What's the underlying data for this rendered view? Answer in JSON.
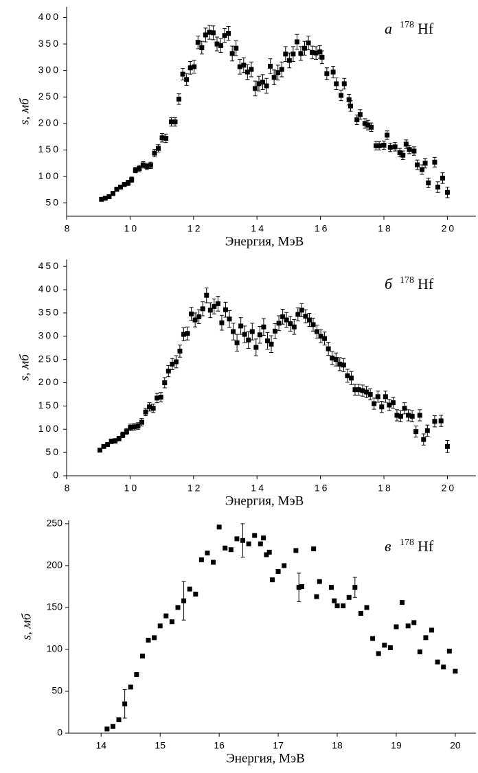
{
  "chart_data": [
    {
      "type": "scatter",
      "annotation_letter": "а",
      "annotation_mass": "178",
      "annotation_element": "Hf",
      "xlabel": "Энергия, МэВ",
      "ylabel": "s, мб",
      "color": "#000000",
      "xlim": [
        8,
        20.9
      ],
      "ylim": [
        25,
        420
      ],
      "xticks": [
        8,
        10,
        12,
        14,
        16,
        18,
        20
      ],
      "yticks": [
        50,
        100,
        150,
        200,
        250,
        300,
        350,
        400
      ],
      "x": [
        9.1,
        9.22,
        9.34,
        9.46,
        9.58,
        9.7,
        9.82,
        9.94,
        10.05,
        10.17,
        10.29,
        10.41,
        10.53,
        10.65,
        10.77,
        10.89,
        11.01,
        11.13,
        11.3,
        11.42,
        11.54,
        11.66,
        11.78,
        11.9,
        12.02,
        12.14,
        12.26,
        12.38,
        12.5,
        12.62,
        12.74,
        12.86,
        12.98,
        13.1,
        13.22,
        13.34,
        13.46,
        13.58,
        13.7,
        13.82,
        13.94,
        14.06,
        14.18,
        14.3,
        14.42,
        14.54,
        14.66,
        14.78,
        14.9,
        15.02,
        15.14,
        15.26,
        15.38,
        15.5,
        15.62,
        15.74,
        15.86,
        15.98,
        16.05,
        16.2,
        16.4,
        16.5,
        16.65,
        16.75,
        16.9,
        16.95,
        17.15,
        17.25,
        17.4,
        17.5,
        17.6,
        17.75,
        17.85,
        18.0,
        18.1,
        18.2,
        18.35,
        18.5,
        18.6,
        18.7,
        18.8,
        18.95,
        19.05,
        19.2,
        19.3,
        19.4,
        19.6,
        19.7,
        19.85,
        20.0
      ],
      "values": [
        57,
        59,
        62,
        68,
        76,
        80,
        85,
        88,
        94,
        112,
        115,
        122,
        119,
        121,
        144,
        153,
        173,
        172,
        203,
        203,
        246,
        293,
        283,
        305,
        307,
        353,
        343,
        367,
        372,
        371,
        350,
        347,
        366,
        370,
        332,
        342,
        307,
        310,
        297,
        302,
        266,
        275,
        278,
        271,
        308,
        287,
        296,
        302,
        331,
        319,
        331,
        354,
        332,
        342,
        352,
        334,
        333,
        335,
        325,
        294,
        297,
        275,
        253,
        275,
        245,
        233,
        207,
        217,
        200,
        197,
        193,
        158,
        158,
        159,
        178,
        155,
        156,
        145,
        140,
        161,
        151,
        148,
        122,
        113,
        125,
        88,
        127,
        80,
        97,
        70
      ],
      "errors": [
        3,
        3,
        3,
        4,
        4,
        4,
        4,
        5,
        5,
        5,
        6,
        6,
        6,
        6,
        7,
        7,
        8,
        8,
        8,
        8,
        10,
        11,
        11,
        12,
        12,
        12,
        12,
        13,
        13,
        13,
        13,
        13,
        13,
        13,
        14,
        14,
        14,
        14,
        14,
        14,
        14,
        14,
        14,
        14,
        14,
        14,
        14,
        14,
        14,
        14,
        14,
        14,
        13,
        13,
        13,
        12,
        12,
        12,
        12,
        11,
        11,
        11,
        10,
        10,
        10,
        10,
        9,
        9,
        9,
        9,
        8,
        8,
        8,
        8,
        8,
        8,
        8,
        8,
        8,
        8,
        8,
        8,
        9,
        9,
        9,
        9,
        9,
        10,
        10,
        10
      ]
    },
    {
      "type": "scatter",
      "annotation_letter": "б",
      "annotation_mass": "178",
      "annotation_element": "Hf",
      "xlabel": "Энергия, МэВ",
      "ylabel": "s, мб",
      "color": "#000000",
      "xlim": [
        8,
        20.9
      ],
      "ylim": [
        0,
        465
      ],
      "xticks": [
        8,
        10,
        12,
        14,
        16,
        18,
        20
      ],
      "yticks": [
        0,
        50,
        100,
        150,
        200,
        250,
        300,
        350,
        400,
        450
      ],
      "x": [
        9.05,
        9.17,
        9.29,
        9.41,
        9.53,
        9.65,
        9.77,
        9.89,
        10.01,
        10.13,
        10.25,
        10.37,
        10.49,
        10.61,
        10.73,
        10.85,
        10.97,
        11.09,
        11.21,
        11.33,
        11.45,
        11.57,
        11.69,
        11.81,
        11.93,
        12.05,
        12.17,
        12.29,
        12.41,
        12.53,
        12.65,
        12.77,
        12.89,
        13.01,
        13.13,
        13.25,
        13.37,
        13.49,
        13.61,
        13.73,
        13.85,
        13.97,
        14.09,
        14.21,
        14.33,
        14.45,
        14.57,
        14.69,
        14.81,
        14.93,
        15.05,
        15.17,
        15.29,
        15.41,
        15.53,
        15.65,
        15.77,
        15.89,
        16.01,
        16.13,
        16.25,
        16.37,
        16.49,
        16.61,
        16.73,
        16.85,
        16.97,
        17.09,
        17.21,
        17.33,
        17.45,
        17.57,
        17.69,
        17.81,
        17.93,
        18.05,
        18.17,
        18.29,
        18.41,
        18.53,
        18.65,
        18.77,
        18.89,
        19.01,
        19.13,
        19.25,
        19.37,
        19.6,
        19.8,
        20.0
      ],
      "values": [
        55,
        63,
        67,
        74,
        75,
        80,
        88,
        95,
        104,
        105,
        107,
        115,
        137,
        148,
        145,
        167,
        169,
        200,
        225,
        240,
        245,
        268,
        304,
        306,
        348,
        335,
        342,
        359,
        388,
        356,
        364,
        370,
        329,
        357,
        337,
        310,
        286,
        322,
        304,
        292,
        310,
        276,
        303,
        320,
        290,
        283,
        311,
        328,
        342,
        335,
        327,
        320,
        347,
        356,
        343,
        335,
        325,
        310,
        300,
        295,
        273,
        253,
        250,
        240,
        238,
        215,
        210,
        185,
        185,
        183,
        180,
        175,
        155,
        170,
        148,
        170,
        152,
        157,
        130,
        128,
        145,
        130,
        128,
        95,
        130,
        78,
        97,
        117,
        118,
        63
      ],
      "errors": [
        4,
        4,
        4,
        5,
        5,
        5,
        6,
        6,
        7,
        7,
        7,
        8,
        8,
        9,
        9,
        10,
        10,
        11,
        12,
        12,
        13,
        13,
        14,
        14,
        14,
        15,
        15,
        15,
        16,
        16,
        16,
        16,
        16,
        16,
        18,
        18,
        18,
        18,
        18,
        18,
        18,
        18,
        18,
        18,
        18,
        18,
        16,
        16,
        16,
        16,
        16,
        16,
        14,
        14,
        14,
        14,
        14,
        14,
        14,
        14,
        14,
        14,
        14,
        14,
        14,
        14,
        14,
        12,
        12,
        12,
        12,
        12,
        12,
        12,
        12,
        12,
        12,
        12,
        12,
        12,
        12,
        12,
        12,
        12,
        12,
        12,
        12,
        12,
        12,
        13
      ]
    },
    {
      "type": "scatter",
      "annotation_letter": "в",
      "annotation_mass": "178",
      "annotation_element": "Hf",
      "xlabel": "Энергия, МэВ",
      "ylabel": "s, мб",
      "color": "#000000",
      "xlim": [
        13.45,
        20.35
      ],
      "ylim": [
        0,
        254
      ],
      "xticks": [
        14,
        15,
        16,
        17,
        18,
        19,
        20
      ],
      "yticks": [
        0,
        50,
        100,
        150,
        200,
        250
      ],
      "x": [
        14.1,
        14.2,
        14.3,
        14.4,
        14.5,
        14.6,
        14.7,
        14.8,
        14.9,
        15.0,
        15.1,
        15.2,
        15.3,
        15.4,
        15.5,
        15.6,
        15.7,
        15.8,
        15.9,
        16.0,
        16.1,
        16.2,
        16.3,
        16.4,
        16.5,
        16.6,
        16.7,
        16.75,
        16.8,
        16.85,
        16.9,
        17.0,
        17.1,
        17.3,
        17.35,
        17.4,
        17.6,
        17.65,
        17.7,
        17.9,
        17.95,
        18.0,
        18.1,
        18.2,
        18.3,
        18.4,
        18.5,
        18.6,
        18.7,
        18.8,
        18.9,
        19.0,
        19.1,
        19.2,
        19.3,
        19.4,
        19.5,
        19.6,
        19.7,
        19.8,
        19.9,
        20.0
      ],
      "values": [
        5,
        8,
        16,
        35,
        55,
        70,
        92,
        111,
        114,
        128,
        140,
        133,
        150,
        158,
        172,
        166,
        207,
        215,
        204,
        246,
        221,
        219,
        232,
        230,
        226,
        236,
        226,
        233,
        213,
        216,
        183,
        193,
        200,
        218,
        174,
        175,
        220,
        163,
        181,
        174,
        158,
        152,
        152,
        162,
        174,
        143,
        150,
        113,
        95,
        105,
        102,
        127,
        156,
        128,
        132,
        97,
        114,
        123,
        85,
        79,
        98,
        74
      ],
      "errors": [
        null,
        null,
        null,
        17,
        null,
        null,
        null,
        null,
        null,
        null,
        null,
        null,
        null,
        23,
        null,
        null,
        null,
        null,
        null,
        null,
        null,
        null,
        null,
        20,
        null,
        null,
        null,
        null,
        null,
        null,
        null,
        null,
        null,
        null,
        17,
        null,
        null,
        null,
        null,
        null,
        null,
        null,
        null,
        null,
        12,
        null,
        null,
        null,
        null,
        null,
        null,
        null,
        null,
        null,
        null,
        null,
        null,
        null,
        null,
        null,
        null,
        null
      ]
    }
  ]
}
